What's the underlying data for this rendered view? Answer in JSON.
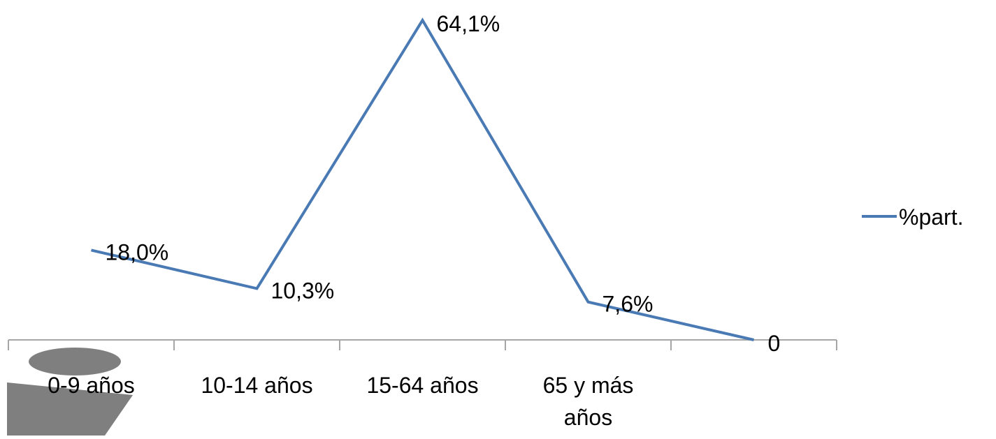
{
  "chart_data": {
    "type": "line",
    "title": "",
    "xlabel": "",
    "ylabel": "",
    "categories": [
      "0-9 años",
      "10-14 años",
      "15-64 años",
      "65 y más años",
      ""
    ],
    "series": [
      {
        "name": "%part.",
        "values": [
          18.0,
          10.3,
          64.1,
          7.6,
          0
        ],
        "labels": [
          "18,0%",
          "10,3%",
          "64,1%",
          "7,6%",
          "0"
        ],
        "color": "#4a7ab4"
      }
    ],
    "ylim": [
      0,
      70
    ],
    "grid": false,
    "legend": "right"
  },
  "colors": {
    "axis": "#a6a6a6",
    "background": "#ffffff",
    "shape": "#7f7f7f"
  }
}
